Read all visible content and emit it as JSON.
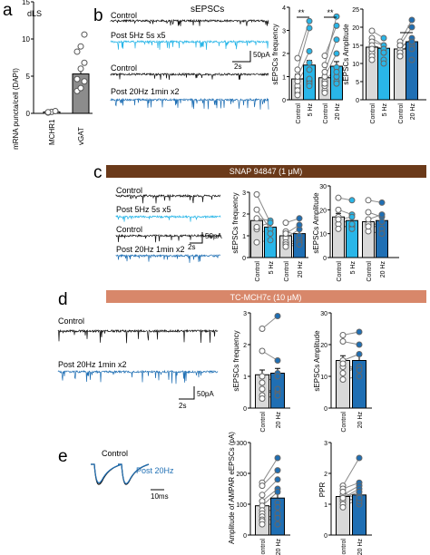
{
  "panels": {
    "a": {
      "letter": "a",
      "region": "dLS",
      "ylabel": "mRNA puncta/cell (DAPI)",
      "yticks": [
        "0",
        "5",
        "10",
        "15"
      ],
      "categories": [
        "MCHR1",
        "vGAT"
      ]
    },
    "b": {
      "letter": "b",
      "title": "sEPSCs",
      "traces": [
        "Control",
        "Post 5Hz 5s x5",
        "Control",
        "Post 20Hz 1min x2"
      ],
      "scale_y": "50pA",
      "scale_x": "2s",
      "freq_ylabel": "sEPSCs frequency",
      "amp_ylabel": "sEPSCs Amplitude",
      "freq_yticks": [
        "0",
        "1",
        "2",
        "3",
        "4"
      ],
      "amp_yticks": [
        "0",
        "5",
        "10",
        "15",
        "20",
        "25"
      ],
      "xlabels": [
        "Control",
        "5 Hz",
        "Control",
        "20 Hz"
      ],
      "sig_freq_1": "**",
      "sig_freq_2": "**",
      "sig_amp": "*"
    },
    "c": {
      "letter": "c",
      "drug": "SNAP 94847 (1 μM)",
      "traces": [
        "Control",
        "Post 5Hz 5s x5",
        "Control",
        "Post 20Hz 1min x2"
      ],
      "scale_y": "50pA",
      "scale_x": "2s",
      "freq_ylabel": "sEPSCs frequency",
      "amp_ylabel": "sEPSCs Amplitude",
      "freq_yticks": [
        "0",
        "1",
        "2",
        "3"
      ],
      "amp_yticks": [
        "0",
        "10",
        "20",
        "30"
      ],
      "xlabels": [
        "Control",
        "5 Hz",
        "Control",
        "20 Hz"
      ]
    },
    "d": {
      "letter": "d",
      "drug": "TC-MCH7c (10 μM)",
      "traces": [
        "Control",
        "Post 20Hz 1min x2"
      ],
      "scale_y": "50pA",
      "scale_x": "2s",
      "freq_ylabel": "sEPSCs frequency",
      "amp_ylabel": "sEPSCs Amplitude",
      "freq_yticks": [
        "0",
        "1",
        "2",
        "3"
      ],
      "amp_yticks": [
        "0",
        "10",
        "20",
        "30"
      ],
      "xlabels": [
        "Control",
        "20 Hz"
      ]
    },
    "e": {
      "letter": "e",
      "trace_labels": [
        "Control",
        "Post 20Hz"
      ],
      "scale_x": "10ms",
      "amp_ylabel": "Amplitude of AMPAR eEPSCs (pA)",
      "ppr_ylabel": "PPR",
      "amp_yticks": [
        "0",
        "100",
        "200",
        "300"
      ],
      "ppr_yticks": [
        "0",
        "1",
        "2",
        "3"
      ],
      "xlabels": [
        "Control",
        "20 Hz"
      ]
    }
  },
  "colors": {
    "control_bar": "#d9d9d9",
    "hz5": "#29b6e8",
    "hz20": "#1f6fb4",
    "vgat": "#8c8c8c",
    "snap_band": "#6b3a1a",
    "tc_band": "#d8876a"
  },
  "chart_data": [
    {
      "type": "bar",
      "panel": "a",
      "ylabel": "mRNA puncta/cell (DAPI)",
      "ylim": [
        0,
        15
      ],
      "categories": [
        "MCHR1",
        "vGAT"
      ],
      "values": [
        0.2,
        5.3
      ],
      "points": [
        [
          0.1,
          0.2,
          0.3,
          0.15
        ],
        [
          3.0,
          3.4,
          4.3,
          4.6,
          6.0,
          6.8,
          8.3,
          9.0,
          10.6
        ]
      ]
    },
    {
      "type": "bar",
      "panel": "b",
      "ylabel": "sEPSCs frequency",
      "ylim": [
        0,
        4
      ],
      "categories": [
        "Control",
        "5 Hz",
        "Control",
        "20 Hz"
      ],
      "values": [
        0.9,
        1.5,
        0.95,
        1.45
      ],
      "pairs": [
        [
          [
            0.3,
            0.8
          ],
          [
            0.5,
            0.9
          ],
          [
            0.6,
            1.3
          ],
          [
            0.8,
            1.6
          ],
          [
            1.0,
            2.1
          ],
          [
            1.3,
            3.1
          ],
          [
            0.4,
            0.7
          ],
          [
            1.8,
            3.4
          ],
          [
            0.2,
            0.6
          ]
        ],
        [
          [
            0.4,
            0.8
          ],
          [
            0.6,
            1.0
          ],
          [
            0.8,
            1.4
          ],
          [
            1.0,
            2.0
          ],
          [
            1.2,
            2.6
          ],
          [
            1.5,
            3.6
          ],
          [
            0.3,
            0.7
          ],
          [
            1.9,
            3.2
          ],
          [
            0.7,
            1.2
          ]
        ]
      ]
    },
    {
      "type": "bar",
      "panel": "b",
      "ylabel": "sEPSCs Amplitude",
      "ylim": [
        0,
        25
      ],
      "categories": [
        "Control",
        "5 Hz",
        "Control",
        "20 Hz"
      ],
      "values": [
        14.5,
        14.2,
        14.0,
        16.0
      ],
      "pairs": [
        [
          [
            19,
            17
          ],
          [
            17,
            15
          ],
          [
            16,
            15
          ],
          [
            15,
            14
          ],
          [
            13,
            13
          ],
          [
            12,
            11
          ],
          [
            14,
            13
          ],
          [
            11,
            10
          ]
        ],
        [
          [
            12,
            15
          ],
          [
            13,
            16
          ],
          [
            14,
            17
          ],
          [
            15,
            20
          ],
          [
            16,
            22
          ],
          [
            15,
            16
          ],
          [
            13,
            14
          ],
          [
            12,
            11
          ]
        ]
      ]
    },
    {
      "type": "bar",
      "panel": "c",
      "ylabel": "sEPSCs frequency",
      "ylim": [
        0,
        3
      ],
      "categories": [
        "Control",
        "5 Hz",
        "Control",
        "20 Hz"
      ],
      "values": [
        1.7,
        1.4,
        1.0,
        1.1
      ],
      "pairs": [
        [
          [
            2.9,
            1.6
          ],
          [
            2.2,
            1.3
          ],
          [
            1.8,
            1.7
          ],
          [
            1.3,
            1.1
          ],
          [
            0.7,
            0.8
          ],
          [
            1.4,
            1.6
          ]
        ],
        [
          [
            1.6,
            1.8
          ],
          [
            1.2,
            1.0
          ],
          [
            0.9,
            1.3
          ],
          [
            0.7,
            0.8
          ],
          [
            1.1,
            1.5
          ],
          [
            0.6,
            0.7
          ],
          [
            0.5,
            0.6
          ]
        ]
      ]
    },
    {
      "type": "bar",
      "panel": "c",
      "ylabel": "sEPSCs Amplitude",
      "ylim": [
        0,
        30
      ],
      "categories": [
        "Control",
        "5 Hz",
        "Control",
        "20 Hz"
      ],
      "values": [
        17,
        15.5,
        15,
        15.5
      ],
      "pairs": [
        [
          [
            25,
            24
          ],
          [
            20,
            18
          ],
          [
            17,
            13
          ],
          [
            14,
            12
          ],
          [
            12,
            14
          ],
          [
            16,
            17
          ]
        ],
        [
          [
            24,
            23
          ],
          [
            19,
            17
          ],
          [
            14,
            12
          ],
          [
            11,
            10
          ],
          [
            13,
            15
          ],
          [
            16,
            18
          ]
        ]
      ]
    },
    {
      "type": "bar",
      "panel": "d",
      "ylabel": "sEPSCs frequency",
      "ylim": [
        0,
        3
      ],
      "categories": [
        "Control",
        "20 Hz"
      ],
      "values": [
        1.05,
        1.1
      ],
      "pairs": [
        [
          [
            2.5,
            2.9
          ],
          [
            1.8,
            1.5
          ],
          [
            1.0,
            1.1
          ],
          [
            0.6,
            0.5
          ],
          [
            0.4,
            0.6
          ],
          [
            0.8,
            1.0
          ],
          [
            0.3,
            0.4
          ]
        ]
      ]
    },
    {
      "type": "bar",
      "panel": "d",
      "ylabel": "sEPSCs Amplitude",
      "ylim": [
        0,
        30
      ],
      "categories": [
        "Control",
        "20 Hz"
      ],
      "values": [
        15,
        15
      ],
      "pairs": [
        [
          [
            23,
            24
          ],
          [
            21,
            20
          ],
          [
            15,
            17
          ],
          [
            13,
            12
          ],
          [
            11,
            13
          ],
          [
            9,
            10
          ],
          [
            14,
            12
          ]
        ]
      ]
    },
    {
      "type": "bar",
      "panel": "e",
      "ylabel": "Amplitude of AMPAR eEPSCs (pA)",
      "ylim": [
        0,
        300
      ],
      "categories": [
        "Control",
        "20 Hz"
      ],
      "values": [
        95,
        120
      ],
      "pairs": [
        [
          [
            170,
            250
          ],
          [
            160,
            210
          ],
          [
            130,
            180
          ],
          [
            110,
            150
          ],
          [
            95,
            140
          ],
          [
            80,
            105
          ],
          [
            70,
            90
          ],
          [
            60,
            60
          ],
          [
            50,
            70
          ],
          [
            45,
            55
          ],
          [
            35,
            35
          ]
        ]
      ]
    },
    {
      "type": "bar",
      "panel": "e",
      "ylabel": "PPR",
      "ylim": [
        0,
        3
      ],
      "categories": [
        "Control",
        "20 Hz"
      ],
      "values": [
        1.25,
        1.3
      ],
      "pairs": [
        [
          [
            1.6,
            2.5
          ],
          [
            1.5,
            1.7
          ],
          [
            1.3,
            1.6
          ],
          [
            1.2,
            1.5
          ],
          [
            1.1,
            1.2
          ],
          [
            1.0,
            1.3
          ],
          [
            1.3,
            1.0
          ],
          [
            1.4,
            1.1
          ],
          [
            1.2,
            1.4
          ],
          [
            0.9,
            1.2
          ]
        ]
      ]
    }
  ]
}
